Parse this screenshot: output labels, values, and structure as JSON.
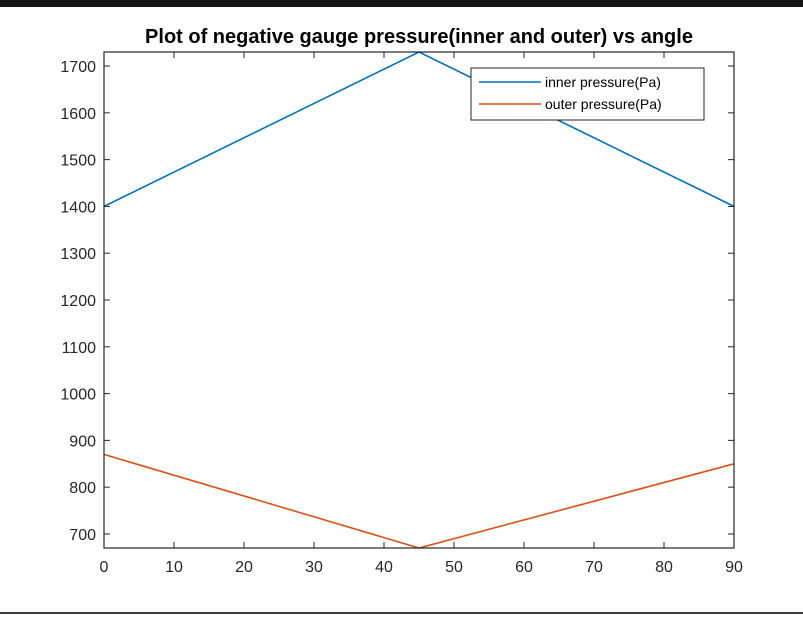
{
  "chart_data": {
    "type": "line",
    "title": "Plot of negative gauge pressure(inner and outer) vs angle",
    "xlabel": "",
    "ylabel": "",
    "xlim": [
      0,
      90
    ],
    "ylim": [
      670,
      1730
    ],
    "xticks": [
      0,
      10,
      20,
      30,
      40,
      50,
      60,
      70,
      80,
      90
    ],
    "yticks": [
      700,
      800,
      900,
      1000,
      1100,
      1200,
      1300,
      1400,
      1500,
      1600,
      1700
    ],
    "grid": false,
    "legend_position": "top-right",
    "series": [
      {
        "name": "inner pressure(Pa)",
        "color": "#0072BD",
        "x": [
          0,
          45,
          90
        ],
        "y": [
          1400,
          1730,
          1400
        ]
      },
      {
        "name": "outer pressure(Pa)",
        "color": "#D95319",
        "x": [
          0,
          45,
          90
        ],
        "y": [
          870,
          670,
          850
        ]
      }
    ]
  }
}
